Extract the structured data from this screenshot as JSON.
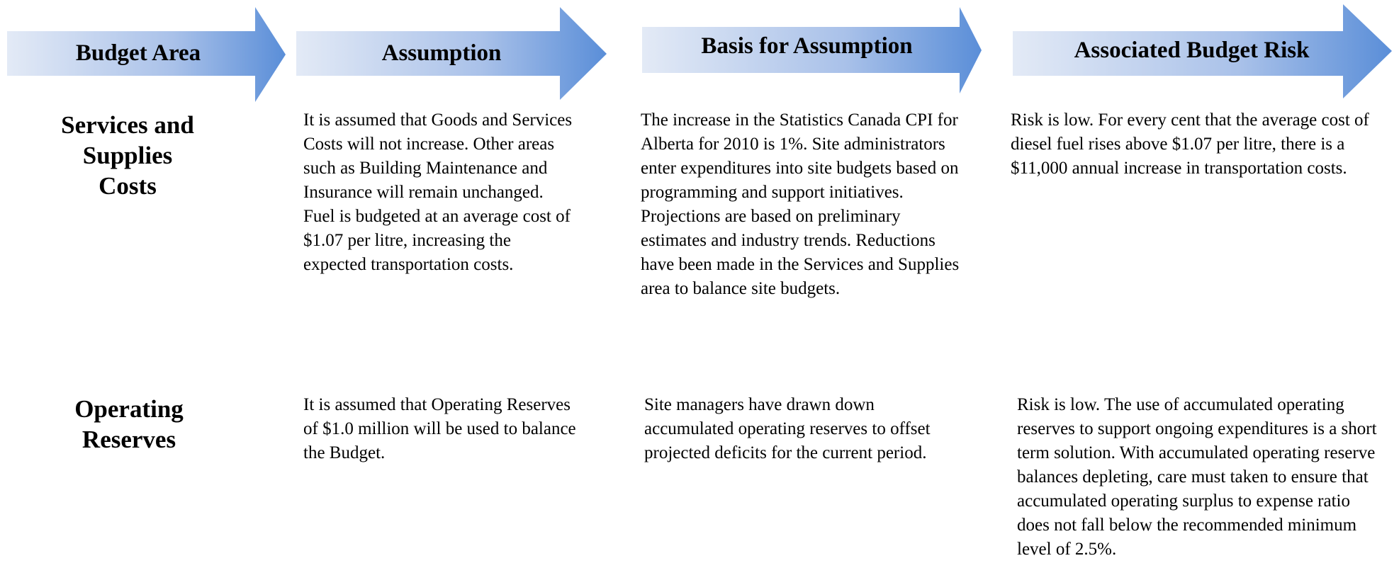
{
  "headers": [
    "Budget Area",
    "Assumption",
    "Basis for Assumption",
    "Associated Budget Risk"
  ],
  "rows": [
    {
      "area": "Services and Supplies Costs",
      "assumption": "It is assumed that Goods and Services Costs will not increase. Other areas such as Building Maintenance and Insurance will remain unchanged.  Fuel is budgeted at an average cost of $1.07 per litre, increasing the expected transportation costs.",
      "basis": "The increase in the Statistics Canada CPI for Alberta for 2010 is 1%. Site administrators enter expenditures into site budgets based on programming and support initiatives. Projections are based on preliminary estimates and industry trends. Reductions have been made in the Services and Supplies area to balance site budgets.",
      "risk": "Risk is low.  For every cent that the average cost of diesel fuel rises above $1.07 per litre, there is a $11,000 annual increase in transportation costs."
    },
    {
      "area": "Operating Reserves",
      "assumption": "It is assumed that Operating Reserves of $1.0 million will be used to balance the Budget.",
      "basis": "Site managers have drawn down accumulated operating reserves to offset projected deficits for the current period.",
      "risk": "Risk is low.  The use of accumulated operating reserves to support ongoing expenditures is a short term solution. With accumulated operating reserve balances depleting, care must taken to ensure that accumulated operating surplus to expense ratio does not fall below the recommended minimum level of 2.5%."
    }
  ]
}
